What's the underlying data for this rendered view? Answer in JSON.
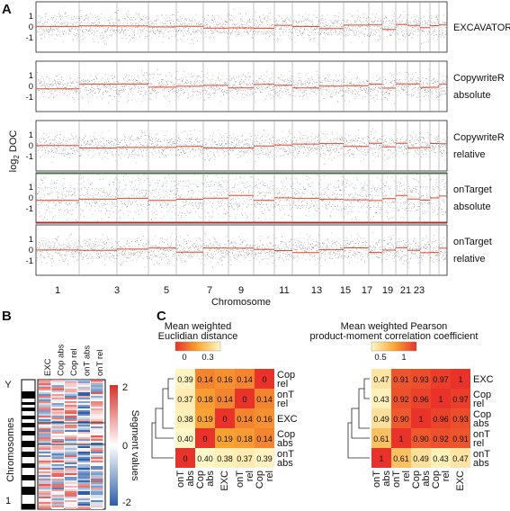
{
  "panels": {
    "a": "A",
    "b": "B",
    "c": "C"
  },
  "panel_a": {
    "ylabel_main": "log",
    "ylabel_sub": "2",
    "ylabel_end": " DOC",
    "xlabel": "Chromosome",
    "ytick_labels": [
      "-1",
      "0",
      "1"
    ],
    "chromosome_labels": [
      "1",
      "3",
      "5",
      "7",
      "9",
      "11",
      "13",
      "15",
      "17",
      "19",
      "21",
      "23"
    ],
    "tracks": [
      {
        "label_lines": [
          "EXCAVATOR"
        ]
      },
      {
        "label_lines": [
          "CopywriteR",
          "absolute"
        ]
      },
      {
        "label_lines": [
          "CopywriteR",
          "relative"
        ]
      },
      {
        "label_lines": [
          "onTarget",
          "absolute"
        ]
      },
      {
        "label_lines": [
          "onTarget",
          "relative"
        ]
      }
    ],
    "colors": {
      "points": "#1a1a1a",
      "segments": "#e8452c",
      "boundary": "#3a8a3a"
    }
  },
  "panel_b": {
    "columns": [
      "EXC",
      "Cop abs",
      "Cop rel",
      "onT abs",
      "onT rel"
    ],
    "ylabel": "Chromosomes",
    "y_top": "Y",
    "y_bottom": "1",
    "legend_title": "Segment values",
    "legend_ticks": [
      "2",
      "0",
      "-2"
    ],
    "colors": {
      "high": "#d73027",
      "mid": "#ffffff",
      "low": "#2c5fa8"
    }
  },
  "panel_c": {
    "left": {
      "title_lines": [
        "Mean weighted",
        "Euclidian distance"
      ],
      "legend_ticks": [
        "0",
        "0.3"
      ],
      "rows": [
        {
          "label_lines": [
            "Cop",
            "rel"
          ],
          "values": [
            "0.39",
            "0.14",
            "0.16",
            "0.14",
            "0"
          ]
        },
        {
          "label_lines": [
            "onT",
            "rel"
          ],
          "values": [
            "0.37",
            "0.18",
            "0.14",
            "0",
            "0.14"
          ]
        },
        {
          "label_lines": [
            "EXC"
          ],
          "values": [
            "0.38",
            "0.19",
            "0",
            "0.14",
            "0.16"
          ]
        },
        {
          "label_lines": [
            "Cop",
            "abs"
          ],
          "values": [
            "0.40",
            "0",
            "0.19",
            "0.18",
            "0.14"
          ]
        },
        {
          "label_lines": [
            "onT",
            "abs"
          ],
          "values": [
            "0",
            "0.40",
            "0.38",
            "0.37",
            "0.39"
          ]
        }
      ],
      "col_labels": [
        [
          "onT",
          "abs"
        ],
        [
          "Cop",
          "abs"
        ],
        [
          "EXC"
        ],
        [
          "onT",
          "rel"
        ],
        [
          "Cop",
          "rel"
        ]
      ],
      "numeric": [
        [
          0.39,
          0.14,
          0.16,
          0.14,
          0
        ],
        [
          0.37,
          0.18,
          0.14,
          0,
          0.14
        ],
        [
          0.38,
          0.19,
          0,
          0.14,
          0.16
        ],
        [
          0.4,
          0,
          0.19,
          0.18,
          0.14
        ],
        [
          0,
          0.4,
          0.38,
          0.37,
          0.39
        ]
      ],
      "scale": {
        "min": 0,
        "max": 0.4,
        "low_color": "#e8322a",
        "mid_color": "#f9a833",
        "high_color": "#fff8c8"
      }
    },
    "right": {
      "title_lines": [
        "Mean weighted Pearson",
        "product-moment correlation coefficient"
      ],
      "legend_ticks": [
        "0.5",
        "1"
      ],
      "rows": [
        {
          "label_lines": [
            "EXC"
          ],
          "values": [
            "0.47",
            "0.91",
            "0.93",
            "0.97",
            "1"
          ]
        },
        {
          "label_lines": [
            "Cop",
            "rel"
          ],
          "values": [
            "0.43",
            "0.92",
            "0.96",
            "1",
            "0.97"
          ]
        },
        {
          "label_lines": [
            "Cop",
            "abs"
          ],
          "values": [
            "0.49",
            "0.90",
            "1",
            "0.96",
            "0.93"
          ]
        },
        {
          "label_lines": [
            "onT",
            "rel"
          ],
          "values": [
            "0.61",
            "1",
            "0.90",
            "0.92",
            "0.91"
          ]
        },
        {
          "label_lines": [
            "onT",
            "abs"
          ],
          "values": [
            "1",
            "0.61",
            "0.49",
            "0.43",
            "0.47"
          ]
        }
      ],
      "col_labels": [
        [
          "onT",
          "abs"
        ],
        [
          "onT",
          "rel"
        ],
        [
          "Cop",
          "abs"
        ],
        [
          "Cop",
          "rel"
        ],
        [
          "EXC"
        ]
      ],
      "numeric": [
        [
          0.47,
          0.91,
          0.93,
          0.97,
          1
        ],
        [
          0.43,
          0.92,
          0.96,
          1,
          0.97
        ],
        [
          0.49,
          0.9,
          1,
          0.96,
          0.93
        ],
        [
          0.61,
          1,
          0.9,
          0.92,
          0.91
        ],
        [
          1,
          0.61,
          0.49,
          0.43,
          0.47
        ]
      ],
      "scale": {
        "min": 0.4,
        "max": 1,
        "low_color": "#fff8c8",
        "mid_color": "#f9a833",
        "high_color": "#e8322a"
      }
    }
  }
}
